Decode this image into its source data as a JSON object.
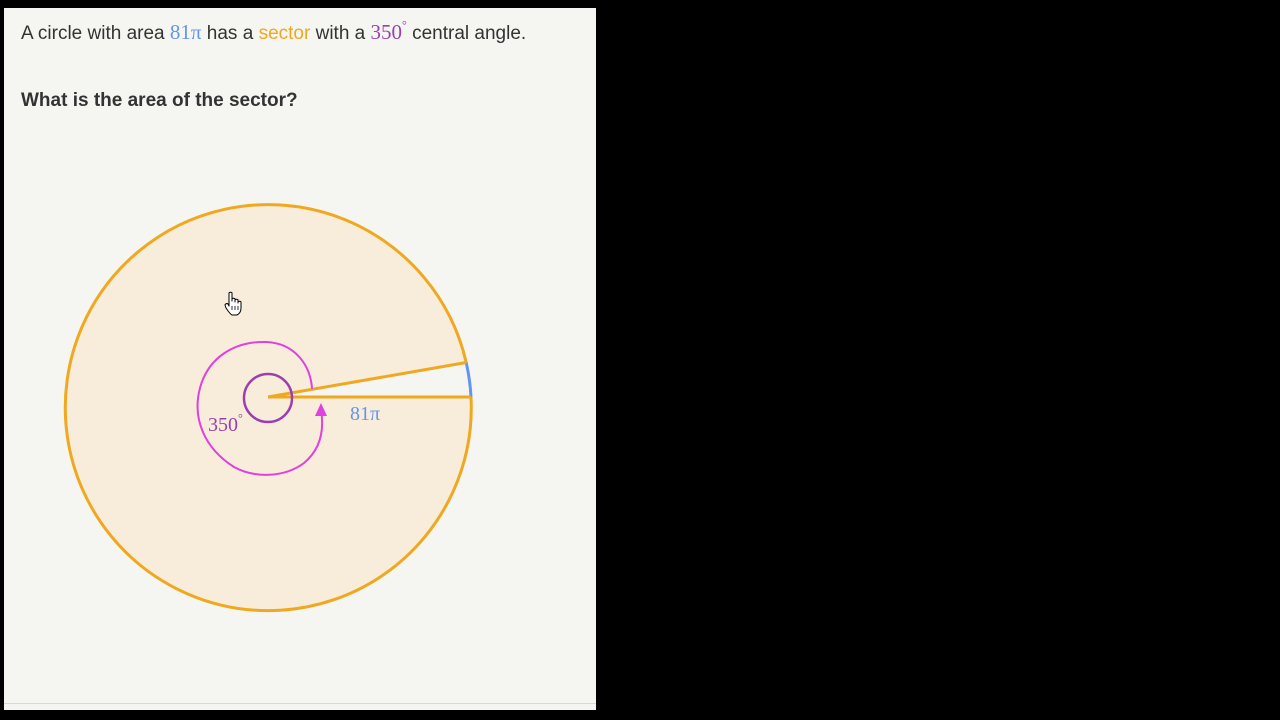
{
  "problem": {
    "part1": "A circle with area ",
    "area_value": "81π",
    "part2": " has a ",
    "sector_word": "sector",
    "part3": " with a ",
    "angle_value": "350",
    "degree_symbol": "°",
    "part4": " central angle."
  },
  "question": "What is the area of the sector?",
  "diagram": {
    "angle_label": "350",
    "angle_degree": "°",
    "area_label": "81π",
    "sector_angle_degrees": 350,
    "gap_angle_degrees": 10
  },
  "colors": {
    "blue": "#6495ed",
    "orange": "#f0a820",
    "purple": "#9b3fb0",
    "magenta": "#e040e0",
    "sector_fill": "#f8ecda",
    "panel_bg": "#f5f6f2",
    "text": "#333333"
  },
  "icons": {
    "cursor": "hand-pointer-icon"
  }
}
